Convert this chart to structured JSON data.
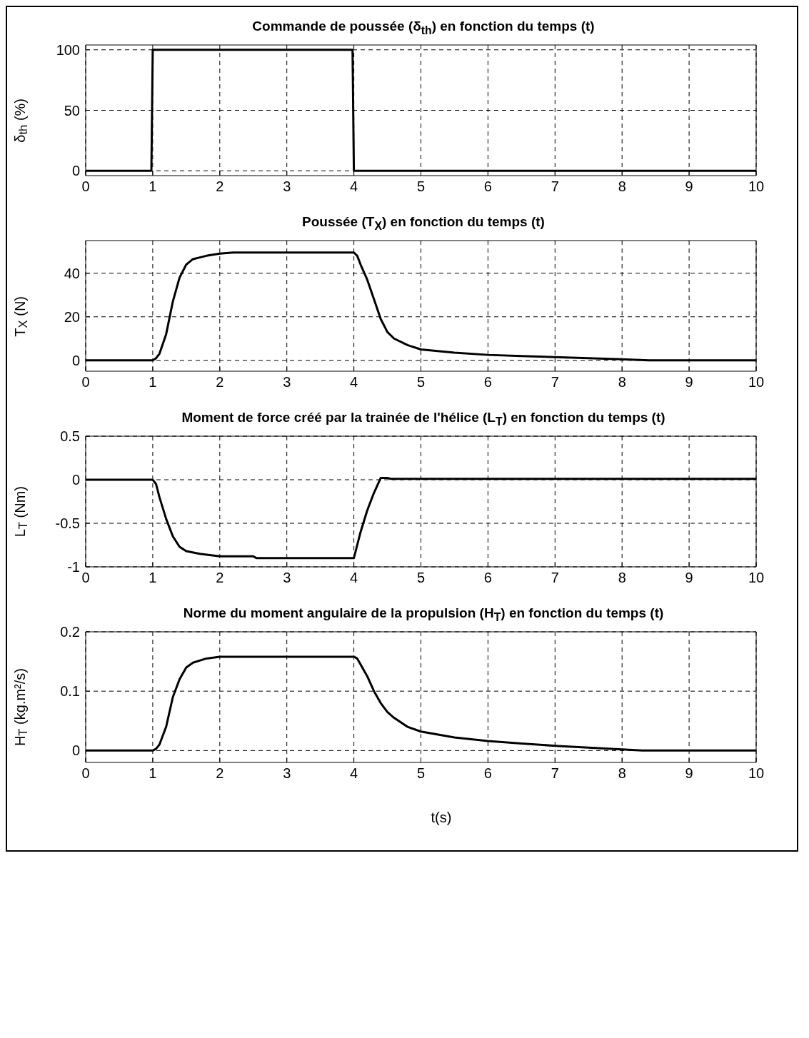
{
  "chart_data": [
    {
      "type": "line",
      "title": "Commande de poussée (δ$_{th}$) en fonction du temps (t)",
      "ylabel": "δ$_{th}$ (%)",
      "color": "#000000",
      "line_style": "solid",
      "grid": true,
      "x": [
        0,
        0.98,
        1.0,
        3.98,
        4.0,
        10
      ],
      "values": [
        0,
        0,
        100,
        100,
        0,
        0
      ],
      "xlim": [
        0,
        10
      ],
      "xticks": [
        0,
        1,
        2,
        3,
        4,
        5,
        6,
        7,
        8,
        9,
        10
      ],
      "ylim": [
        -4,
        104
      ],
      "yticks": [
        0,
        50,
        100
      ]
    },
    {
      "type": "line",
      "title": "Poussée (T$_{X}$) en fonction du temps (t)",
      "ylabel": "T$_{X}$ (N)",
      "color": "#000000",
      "line_style": "solid",
      "grid": true,
      "x": [
        0,
        1,
        1.05,
        1.1,
        1.2,
        1.3,
        1.4,
        1.5,
        1.6,
        1.8,
        2,
        2.2,
        3,
        4,
        4.05,
        4.1,
        4.2,
        4.3,
        4.4,
        4.5,
        4.6,
        4.8,
        5,
        5.5,
        6,
        6.5,
        7,
        7.5,
        8,
        8.4,
        9,
        10
      ],
      "values": [
        0,
        0,
        1,
        3,
        12,
        27,
        38,
        44,
        46.5,
        48,
        49,
        49.5,
        49.5,
        49.5,
        48,
        44,
        37,
        28,
        19,
        13,
        10,
        7,
        5,
        3.5,
        2.5,
        2,
        1.5,
        1,
        0.5,
        0,
        0,
        0
      ],
      "xlim": [
        0,
        10
      ],
      "xticks": [
        0,
        1,
        2,
        3,
        4,
        5,
        6,
        7,
        8,
        9,
        10
      ],
      "ylim": [
        -5,
        55
      ],
      "yticks": [
        0,
        20,
        40
      ]
    },
    {
      "type": "line",
      "title": "Moment de force créé par la trainée de l'hélice (L$_{T}$) en fonction du temps (t)",
      "ylabel": "L$_{T}$ (Nm)",
      "color": "#000000",
      "line_style": "solid",
      "grid": true,
      "x": [
        0,
        1,
        1.05,
        1.1,
        1.2,
        1.3,
        1.4,
        1.5,
        1.7,
        2,
        2.5,
        2.55,
        4,
        4.05,
        4.1,
        4.2,
        4.3,
        4.4,
        4.5,
        4.55,
        10
      ],
      "values": [
        0,
        0,
        -0.05,
        -0.2,
        -0.45,
        -0.65,
        -0.77,
        -0.82,
        -0.85,
        -0.88,
        -0.88,
        -0.9,
        -0.9,
        -0.75,
        -0.6,
        -0.35,
        -0.15,
        0.02,
        0.02,
        0.01,
        0.01
      ],
      "xlim": [
        0,
        10
      ],
      "xticks": [
        0,
        1,
        2,
        3,
        4,
        5,
        6,
        7,
        8,
        9,
        10
      ],
      "ylim": [
        -1,
        0.5
      ],
      "yticks": [
        -1,
        -0.5,
        0,
        0.5
      ]
    },
    {
      "type": "line",
      "title": "Norme du moment angulaire de la propulsion (H$_{T}$) en fonction du temps (t)",
      "ylabel": "H$_{T}$ (kg.m²/s)",
      "xlabel": "t(s)",
      "color": "#000000",
      "line_style": "solid",
      "grid": true,
      "x": [
        0,
        1,
        1.05,
        1.1,
        1.2,
        1.3,
        1.4,
        1.5,
        1.6,
        1.8,
        2,
        4,
        4.05,
        4.1,
        4.2,
        4.3,
        4.4,
        4.5,
        4.6,
        4.8,
        5,
        5.5,
        6,
        6.5,
        7,
        7.5,
        8,
        8.3,
        9,
        10
      ],
      "values": [
        0,
        0,
        0.003,
        0.01,
        0.04,
        0.09,
        0.12,
        0.14,
        0.148,
        0.155,
        0.158,
        0.158,
        0.155,
        0.145,
        0.125,
        0.1,
        0.08,
        0.065,
        0.055,
        0.04,
        0.032,
        0.022,
        0.016,
        0.012,
        0.008,
        0.005,
        0.002,
        0,
        0,
        0
      ],
      "xlim": [
        0,
        10
      ],
      "xticks": [
        0,
        1,
        2,
        3,
        4,
        5,
        6,
        7,
        8,
        9,
        10
      ],
      "ylim": [
        -0.02,
        0.2
      ],
      "yticks": [
        0,
        0.1,
        0.2
      ]
    }
  ]
}
